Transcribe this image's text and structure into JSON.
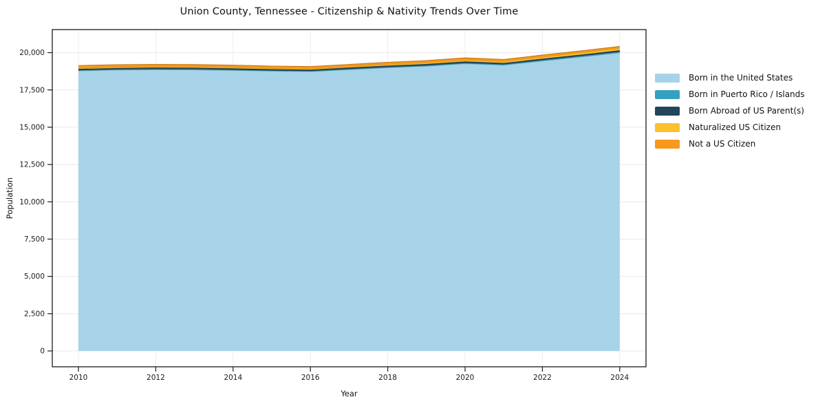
{
  "chart_data": {
    "type": "area",
    "stacked": true,
    "title": "Union County, Tennessee - Citizenship & Nativity Trends Over Time",
    "xlabel": "Year",
    "ylabel": "Population",
    "x": [
      2010,
      2011,
      2012,
      2013,
      2014,
      2015,
      2016,
      2017,
      2018,
      2019,
      2020,
      2021,
      2022,
      2023,
      2024
    ],
    "xticks": [
      2010,
      2012,
      2014,
      2016,
      2018,
      2020,
      2022,
      2024
    ],
    "yticks": [
      0,
      2500,
      5000,
      7500,
      10000,
      12500,
      15000,
      17500,
      20000
    ],
    "ylim": [
      0,
      21500
    ],
    "grid": true,
    "legend_position": "right",
    "series": [
      {
        "name": "Born in the United States",
        "color": "#A7D3E9",
        "values": [
          18780,
          18840,
          18860,
          18850,
          18810,
          18760,
          18730,
          18860,
          18990,
          19090,
          19260,
          19160,
          19440,
          19710,
          19990
        ]
      },
      {
        "name": "Born in Puerto Rico / Islands",
        "color": "#35A1C0",
        "values": [
          40,
          40,
          40,
          40,
          40,
          40,
          40,
          45,
          45,
          50,
          50,
          55,
          60,
          65,
          70
        ]
      },
      {
        "name": "Born Abroad of US Parent(s)",
        "color": "#22455A",
        "values": [
          90,
          90,
          95,
          95,
          95,
          90,
          90,
          95,
          95,
          100,
          100,
          95,
          95,
          95,
          100
        ]
      },
      {
        "name": "Naturalized US Citizen",
        "color": "#FCC12E",
        "values": [
          50,
          50,
          50,
          55,
          55,
          55,
          55,
          60,
          70,
          80,
          90,
          90,
          110,
          120,
          130
        ]
      },
      {
        "name": "Not a US Citizen",
        "color": "#F8981D",
        "values": [
          175,
          170,
          170,
          160,
          160,
          155,
          155,
          150,
          150,
          150,
          150,
          140,
          135,
          130,
          130
        ]
      }
    ]
  }
}
